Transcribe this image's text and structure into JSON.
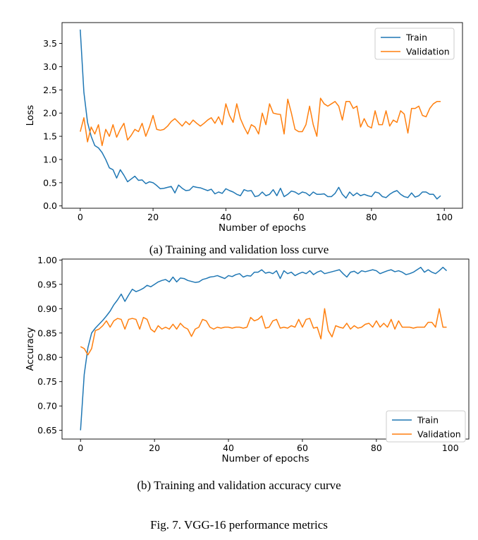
{
  "figure": {
    "caption": "Fig. 7.  VGG-16 performance metrics"
  },
  "charts": [
    {
      "caption": "(a) Training and validation loss curve",
      "xlabel": "Number of epochs",
      "ylabel": "Loss"
    },
    {
      "caption": "(b) Training and validation accuracy curve",
      "xlabel": "Number of epochs",
      "ylabel": "Accuracy"
    }
  ],
  "chart_data": [
    {
      "type": "line",
      "xlabel": "Number of epochs",
      "ylabel": "Loss",
      "xlim": [
        -5,
        105
      ],
      "ylim": [
        -0.05,
        3.95
      ],
      "xticks": [
        0,
        20,
        40,
        60,
        80,
        100
      ],
      "yticks": [
        0.0,
        0.5,
        1.0,
        1.5,
        2.0,
        2.5,
        3.0,
        3.5
      ],
      "grid": false,
      "legend_position": "top-right",
      "x": [
        0,
        1,
        2,
        3,
        4,
        5,
        6,
        7,
        8,
        9,
        10,
        11,
        12,
        13,
        14,
        15,
        16,
        17,
        18,
        19,
        20,
        21,
        22,
        23,
        24,
        25,
        26,
        27,
        28,
        29,
        30,
        31,
        32,
        33,
        34,
        35,
        36,
        37,
        38,
        39,
        40,
        41,
        42,
        43,
        44,
        45,
        46,
        47,
        48,
        49,
        50,
        51,
        52,
        53,
        54,
        55,
        56,
        57,
        58,
        59,
        60,
        61,
        62,
        63,
        64,
        65,
        66,
        67,
        68,
        69,
        70,
        71,
        72,
        73,
        74,
        75,
        76,
        77,
        78,
        79,
        80,
        81,
        82,
        83,
        84,
        85,
        86,
        87,
        88,
        89,
        90,
        91,
        92,
        93,
        94,
        95,
        96,
        97,
        98,
        99
      ],
      "series": [
        {
          "name": "Train",
          "color": "#1f77b4",
          "values": [
            3.8,
            2.45,
            1.8,
            1.5,
            1.3,
            1.25,
            1.15,
            1.0,
            0.82,
            0.78,
            0.6,
            0.78,
            0.66,
            0.52,
            0.58,
            0.64,
            0.55,
            0.56,
            0.48,
            0.52,
            0.5,
            0.44,
            0.37,
            0.38,
            0.4,
            0.42,
            0.28,
            0.45,
            0.38,
            0.33,
            0.34,
            0.42,
            0.4,
            0.39,
            0.36,
            0.33,
            0.36,
            0.26,
            0.3,
            0.27,
            0.37,
            0.33,
            0.3,
            0.25,
            0.22,
            0.35,
            0.32,
            0.33,
            0.2,
            0.22,
            0.3,
            0.22,
            0.25,
            0.35,
            0.22,
            0.38,
            0.2,
            0.25,
            0.32,
            0.3,
            0.25,
            0.3,
            0.28,
            0.22,
            0.3,
            0.25,
            0.25,
            0.26,
            0.2,
            0.2,
            0.27,
            0.4,
            0.25,
            0.17,
            0.3,
            0.22,
            0.28,
            0.22,
            0.25,
            0.22,
            0.2,
            0.3,
            0.28,
            0.2,
            0.18,
            0.25,
            0.3,
            0.33,
            0.25,
            0.2,
            0.18,
            0.28,
            0.19,
            0.22,
            0.3,
            0.3,
            0.25,
            0.25,
            0.15,
            0.22
          ]
        },
        {
          "name": "Validation",
          "color": "#ff7f0e",
          "values": [
            1.6,
            1.9,
            1.38,
            1.7,
            1.55,
            1.75,
            1.3,
            1.65,
            1.5,
            1.75,
            1.48,
            1.65,
            1.78,
            1.42,
            1.52,
            1.65,
            1.6,
            1.78,
            1.5,
            1.7,
            1.95,
            1.65,
            1.63,
            1.65,
            1.72,
            1.82,
            1.88,
            1.8,
            1.72,
            1.82,
            1.75,
            1.85,
            1.78,
            1.72,
            1.78,
            1.85,
            1.9,
            1.78,
            1.92,
            1.75,
            2.2,
            1.95,
            1.8,
            2.2,
            1.88,
            1.7,
            1.55,
            1.75,
            1.7,
            1.55,
            2.0,
            1.75,
            2.2,
            2.0,
            1.98,
            1.97,
            1.55,
            2.3,
            2.0,
            1.65,
            1.6,
            1.6,
            1.75,
            2.15,
            1.75,
            1.5,
            2.32,
            2.2,
            2.15,
            2.2,
            2.25,
            2.15,
            1.85,
            2.25,
            2.25,
            2.1,
            2.15,
            1.7,
            1.88,
            1.72,
            1.68,
            2.05,
            1.75,
            1.75,
            2.05,
            1.72,
            1.85,
            1.8,
            2.05,
            1.98,
            1.57,
            2.1,
            2.1,
            2.15,
            1.95,
            1.92,
            2.1,
            2.2,
            2.25,
            2.25
          ]
        }
      ]
    },
    {
      "type": "line",
      "xlabel": "Number of epochs",
      "ylabel": "Accuracy",
      "xlim": [
        -5,
        105
      ],
      "ylim": [
        0.632,
        1.002
      ],
      "xticks": [
        0,
        20,
        40,
        60,
        80,
        100
      ],
      "yticks": [
        0.65,
        0.7,
        0.75,
        0.8,
        0.85,
        0.9,
        0.95,
        1.0
      ],
      "grid": false,
      "legend_position": "bottom-right",
      "x": [
        0,
        1,
        2,
        3,
        4,
        5,
        6,
        7,
        8,
        9,
        10,
        11,
        12,
        13,
        14,
        15,
        16,
        17,
        18,
        19,
        20,
        21,
        22,
        23,
        24,
        25,
        26,
        27,
        28,
        29,
        30,
        31,
        32,
        33,
        34,
        35,
        36,
        37,
        38,
        39,
        40,
        41,
        42,
        43,
        44,
        45,
        46,
        47,
        48,
        49,
        50,
        51,
        52,
        53,
        54,
        55,
        56,
        57,
        58,
        59,
        60,
        61,
        62,
        63,
        64,
        65,
        66,
        67,
        68,
        69,
        70,
        71,
        72,
        73,
        74,
        75,
        76,
        77,
        78,
        79,
        80,
        81,
        82,
        83,
        84,
        85,
        86,
        87,
        88,
        89,
        90,
        91,
        92,
        93,
        94,
        95,
        96,
        97,
        98,
        99
      ],
      "series": [
        {
          "name": "Train",
          "color": "#1f77b4",
          "values": [
            0.65,
            0.765,
            0.82,
            0.85,
            0.86,
            0.868,
            0.876,
            0.885,
            0.895,
            0.908,
            0.918,
            0.93,
            0.915,
            0.928,
            0.94,
            0.935,
            0.938,
            0.942,
            0.948,
            0.945,
            0.95,
            0.955,
            0.958,
            0.96,
            0.955,
            0.965,
            0.955,
            0.963,
            0.962,
            0.958,
            0.956,
            0.954,
            0.955,
            0.96,
            0.962,
            0.965,
            0.966,
            0.968,
            0.965,
            0.962,
            0.968,
            0.966,
            0.97,
            0.972,
            0.965,
            0.968,
            0.967,
            0.975,
            0.975,
            0.98,
            0.973,
            0.975,
            0.972,
            0.978,
            0.962,
            0.978,
            0.972,
            0.975,
            0.968,
            0.972,
            0.975,
            0.972,
            0.978,
            0.97,
            0.975,
            0.978,
            0.972,
            0.974,
            0.976,
            0.978,
            0.98,
            0.972,
            0.965,
            0.975,
            0.977,
            0.972,
            0.978,
            0.976,
            0.978,
            0.98,
            0.978,
            0.972,
            0.975,
            0.978,
            0.98,
            0.976,
            0.978,
            0.975,
            0.97,
            0.972,
            0.975,
            0.98,
            0.985,
            0.975,
            0.98,
            0.975,
            0.972,
            0.978,
            0.985,
            0.978
          ]
        },
        {
          "name": "Validation",
          "color": "#ff7f0e",
          "values": [
            0.822,
            0.818,
            0.805,
            0.818,
            0.855,
            0.858,
            0.865,
            0.875,
            0.862,
            0.875,
            0.88,
            0.878,
            0.858,
            0.878,
            0.88,
            0.878,
            0.858,
            0.882,
            0.878,
            0.858,
            0.852,
            0.865,
            0.858,
            0.862,
            0.858,
            0.868,
            0.858,
            0.87,
            0.862,
            0.858,
            0.843,
            0.858,
            0.862,
            0.878,
            0.875,
            0.862,
            0.858,
            0.862,
            0.86,
            0.862,
            0.862,
            0.86,
            0.862,
            0.862,
            0.86,
            0.862,
            0.882,
            0.875,
            0.878,
            0.885,
            0.86,
            0.862,
            0.875,
            0.878,
            0.86,
            0.862,
            0.86,
            0.865,
            0.862,
            0.878,
            0.862,
            0.878,
            0.88,
            0.86,
            0.862,
            0.838,
            0.9,
            0.855,
            0.842,
            0.865,
            0.862,
            0.86,
            0.87,
            0.858,
            0.865,
            0.86,
            0.862,
            0.868,
            0.87,
            0.862,
            0.875,
            0.862,
            0.87,
            0.862,
            0.878,
            0.858,
            0.875,
            0.862,
            0.862,
            0.862,
            0.86,
            0.862,
            0.862,
            0.862,
            0.872,
            0.872,
            0.862,
            0.9,
            0.862,
            0.862
          ]
        }
      ]
    }
  ]
}
